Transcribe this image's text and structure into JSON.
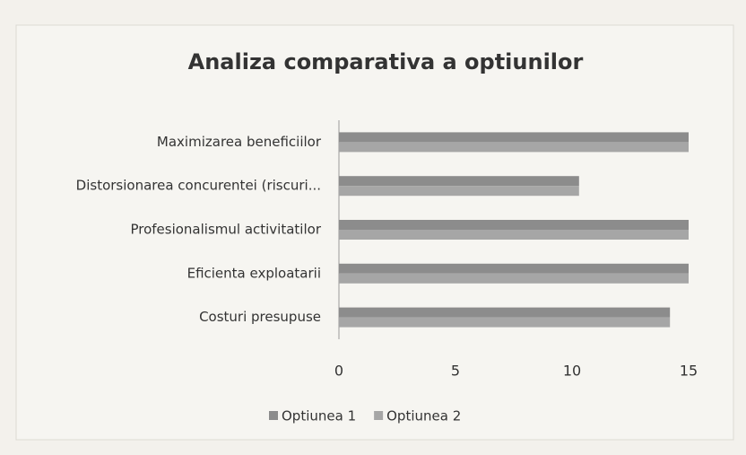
{
  "chart_data": {
    "type": "bar",
    "orientation": "horizontal",
    "title": "Analiza comparativa a optiunilor",
    "categories": [
      "Maximizarea beneficiilor",
      "Distorsionarea concurentei (riscuri...",
      "Profesionalismul activitatilor",
      "Eficienta exploatarii",
      "Costuri presupuse"
    ],
    "series": [
      {
        "name": "Optiunea 1",
        "color": "#8c8c8c",
        "values": [
          15,
          10.3,
          15,
          15,
          14.2
        ]
      },
      {
        "name": "Optiunea 2",
        "color": "#a6a6a6",
        "values": [
          15,
          10.3,
          15,
          15,
          14.2
        ]
      }
    ],
    "xlim": [
      0,
      15
    ],
    "xticks": [
      0,
      5,
      10,
      15
    ],
    "legend": "bottom"
  }
}
